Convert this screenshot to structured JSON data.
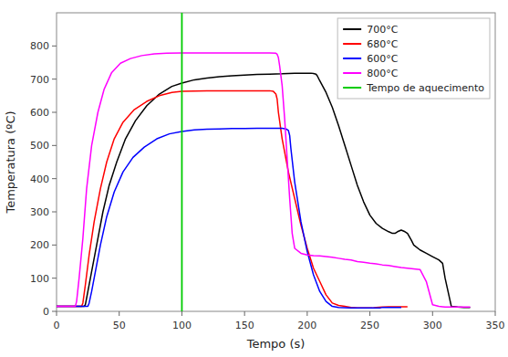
{
  "chart_data": {
    "type": "line",
    "xlabel": "Tempo (s)",
    "ylabel": "Temperatura (ºC)",
    "xlim": [
      0,
      350
    ],
    "ylim": [
      0,
      900
    ],
    "xticks": [
      0,
      50,
      100,
      150,
      200,
      250,
      300,
      350
    ],
    "yticks": [
      0,
      100,
      200,
      300,
      400,
      500,
      600,
      700,
      800
    ],
    "legend": "upper right",
    "series": [
      {
        "name": "700°C",
        "color": "#000000",
        "x": [
          0,
          22,
          23,
          25,
          28,
          32,
          37,
          42,
          48,
          55,
          63,
          72,
          82,
          92,
          100,
          110,
          120,
          130,
          140,
          150,
          160,
          170,
          180,
          190,
          195,
          200,
          203,
          205,
          207,
          208,
          210,
          215,
          220,
          225,
          230,
          235,
          240,
          245,
          250,
          255,
          260,
          265,
          268,
          270,
          272,
          275,
          278,
          280,
          283,
          285,
          290,
          295,
          300,
          305,
          308,
          310,
          315,
          320,
          325,
          330
        ],
        "values": [
          15,
          15,
          20,
          60,
          120,
          200,
          300,
          380,
          450,
          520,
          575,
          620,
          655,
          678,
          688,
          698,
          703,
          707,
          710,
          712,
          714,
          715,
          716,
          718,
          718,
          718,
          718,
          717,
          715,
          710,
          695,
          660,
          615,
          560,
          500,
          440,
          380,
          330,
          290,
          265,
          250,
          240,
          235,
          235,
          240,
          245,
          240,
          235,
          215,
          200,
          185,
          175,
          165,
          155,
          145,
          100,
          15,
          13,
          12,
          12
        ]
      },
      {
        "name": "680°C",
        "color": "#ff0000",
        "x": [
          0,
          20,
          21,
          23,
          26,
          30,
          35,
          40,
          46,
          53,
          62,
          72,
          82,
          92,
          100,
          110,
          120,
          130,
          140,
          150,
          160,
          170,
          173,
          175,
          176,
          177,
          180,
          185,
          190,
          195,
          200,
          205,
          210,
          215,
          220,
          225,
          230,
          235,
          240,
          245,
          248,
          250,
          252,
          255,
          260,
          265,
          270,
          275,
          280
        ],
        "values": [
          15,
          15,
          25,
          80,
          170,
          270,
          370,
          450,
          520,
          570,
          608,
          633,
          650,
          660,
          663,
          664,
          665,
          665,
          665,
          665,
          665,
          665,
          663,
          655,
          640,
          600,
          520,
          420,
          340,
          260,
          190,
          130,
          90,
          50,
          25,
          18,
          15,
          12,
          10,
          10,
          10,
          10,
          10,
          12,
          13,
          14,
          14,
          14,
          14
        ]
      },
      {
        "name": "600°C",
        "color": "#0000ff",
        "x": [
          0,
          25,
          26,
          28,
          31,
          35,
          40,
          46,
          53,
          61,
          70,
          80,
          90,
          100,
          110,
          120,
          130,
          140,
          150,
          160,
          170,
          180,
          183,
          185,
          186,
          187,
          190,
          195,
          200,
          205,
          210,
          215,
          220,
          225,
          230,
          235,
          240,
          245,
          250,
          255,
          258,
          260,
          265,
          270,
          275
        ],
        "values": [
          15,
          15,
          25,
          60,
          120,
          200,
          285,
          360,
          420,
          464,
          495,
          520,
          535,
          542,
          547,
          549,
          550,
          551,
          551,
          552,
          552,
          552,
          550,
          545,
          530,
          490,
          390,
          270,
          180,
          110,
          60,
          30,
          15,
          12,
          11,
          10,
          10,
          10,
          10,
          10,
          10,
          12,
          12,
          12,
          12
        ]
      },
      {
        "name": "800°C",
        "color": "#ff00ff",
        "x": [
          0,
          15,
          16,
          18,
          21,
          24,
          28,
          33,
          38,
          44,
          51,
          59,
          68,
          78,
          88,
          100,
          110,
          120,
          130,
          140,
          150,
          160,
          170,
          175,
          176,
          177,
          178,
          180,
          182,
          184,
          186,
          188,
          190,
          195,
          200,
          205,
          210,
          215,
          220,
          225,
          230,
          235,
          240,
          245,
          250,
          255,
          260,
          265,
          270,
          275,
          280,
          285,
          290,
          295,
          300,
          305,
          308,
          310,
          313,
          315,
          320,
          325,
          330
        ],
        "values": [
          15,
          15,
          30,
          100,
          220,
          370,
          500,
          600,
          670,
          720,
          748,
          762,
          771,
          776,
          778,
          779,
          779,
          779,
          779,
          779,
          779,
          779,
          779,
          778,
          775,
          765,
          740,
          680,
          580,
          460,
          340,
          235,
          190,
          175,
          170,
          168,
          167,
          165,
          163,
          160,
          157,
          155,
          150,
          148,
          145,
          143,
          140,
          138,
          135,
          132,
          130,
          128,
          126,
          90,
          20,
          15,
          14,
          13,
          13,
          13,
          13,
          13,
          13
        ]
      }
    ],
    "vlines": [
      {
        "name": "Tempo de aquecimento",
        "x": 100,
        "color": "#00cc00"
      }
    ]
  }
}
